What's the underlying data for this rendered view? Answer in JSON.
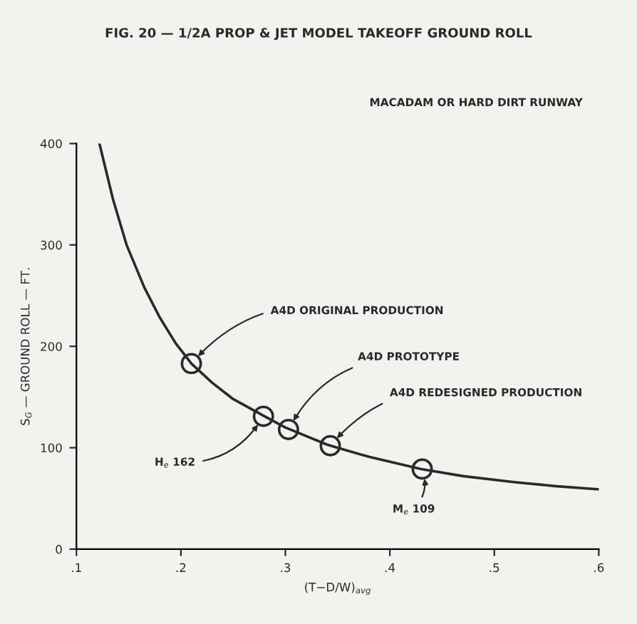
{
  "chart_data": {
    "type": "line",
    "title": "FIG. 20 — 1/2A PROP & JET MODEL TAKEOFF GROUND ROLL",
    "xlabel": "(T−D/W)$_{avg}$",
    "ylabel": "S$_{G}$ — GROUND ROLL — FT.",
    "xlim": [
      0.1,
      0.6
    ],
    "xticks": [
      {
        "value": 0.1,
        "label": ".1"
      },
      {
        "value": 0.2,
        "label": ".2"
      },
      {
        "value": 0.3,
        "label": ".3"
      },
      {
        "value": 0.4,
        "label": ".4"
      },
      {
        "value": 0.5,
        "label": ".5"
      },
      {
        "value": 0.6,
        "label": ".6"
      }
    ],
    "ylim": [
      0,
      400
    ],
    "yticks": [
      0,
      100,
      200,
      300,
      400
    ],
    "grid": false,
    "legend": false,
    "series": [
      {
        "color": "#2a2a2a",
        "marker": "none",
        "line_style": "solid",
        "x": [
          0.122,
          0.135,
          0.148,
          0.165,
          0.18,
          0.195,
          0.21,
          0.23,
          0.25,
          0.28,
          0.3,
          0.34,
          0.38,
          0.43,
          0.47,
          0.52,
          0.56,
          0.6
        ],
        "values": [
          400,
          345,
          300,
          258,
          228,
          203,
          183,
          164,
          148,
          131,
          120,
          103,
          91,
          79,
          72,
          66,
          62,
          59
        ]
      },
      {
        "type": "scatter",
        "color": "#2a2a2a",
        "marker": "circle",
        "x": [
          0.21,
          0.279,
          0.303,
          0.343,
          0.431
        ],
        "values": [
          183,
          131,
          118,
          102,
          79
        ]
      }
    ],
    "annotations": [
      "MACADAM OR HARD DIRT RUNWAY",
      {
        "text": "A4D ORIGINAL PRODUCTION",
        "x": 0.21,
        "y": 183
      },
      {
        "text": "H$_{e}$ 162",
        "x": 0.279,
        "y": 131
      },
      {
        "text": "A4D PROTOTYPE",
        "x": 0.303,
        "y": 118
      },
      {
        "text": "A4D REDESIGNED PRODUCTION",
        "x": 0.343,
        "y": 102
      },
      {
        "text": "M$_{e}$ 109",
        "x": 0.431,
        "y": 79
      }
    ]
  }
}
